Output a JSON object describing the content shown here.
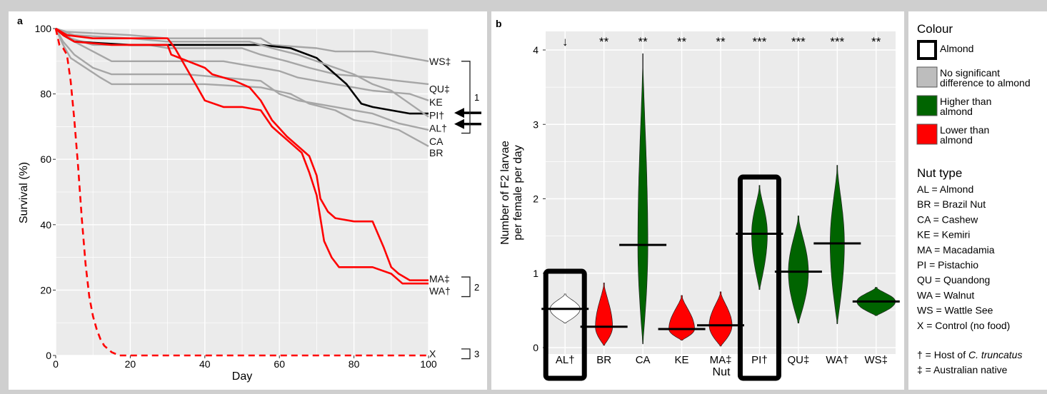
{
  "panels": {
    "a": "a",
    "b": "b"
  },
  "chart_data": [
    {
      "type": "line",
      "panel": "a",
      "xlabel": "Day",
      "ylabel": "Survival (%)",
      "xlim": [
        0,
        100
      ],
      "ylim": [
        0,
        100
      ],
      "x_ticks": [
        "0",
        "20",
        "40",
        "60",
        "80",
        "100"
      ],
      "y_ticks": [
        "0",
        "20",
        "40",
        "60",
        "80",
        "100"
      ],
      "grid": true,
      "series": [
        {
          "name": "WS‡",
          "color": "#a6a6a6",
          "points": [
            [
              0,
              100
            ],
            [
              3,
              99
            ],
            [
              20,
              98
            ],
            [
              30,
              97
            ],
            [
              55,
              97
            ],
            [
              58,
              95
            ],
            [
              70,
              94
            ],
            [
              75,
              93
            ],
            [
              85,
              93
            ],
            [
              90,
              92
            ],
            [
              100,
              90
            ]
          ]
        },
        {
          "name": "QU‡",
          "color": "#a6a6a6",
          "points": [
            [
              0,
              100
            ],
            [
              2,
              99
            ],
            [
              4,
              97
            ],
            [
              10,
              95
            ],
            [
              25,
              95
            ],
            [
              30,
              94
            ],
            [
              50,
              94
            ],
            [
              55,
              92
            ],
            [
              62,
              90
            ],
            [
              68,
              88
            ],
            [
              75,
              86
            ],
            [
              85,
              85
            ],
            [
              92,
              84
            ],
            [
              100,
              83
            ]
          ]
        },
        {
          "name": "KE",
          "color": "#a6a6a6",
          "points": [
            [
              0,
              100
            ],
            [
              2,
              98
            ],
            [
              5,
              96
            ],
            [
              10,
              93
            ],
            [
              15,
              90
            ],
            [
              30,
              90
            ],
            [
              45,
              90
            ],
            [
              50,
              89
            ],
            [
              60,
              87
            ],
            [
              65,
              85
            ],
            [
              75,
              83
            ],
            [
              85,
              81
            ],
            [
              95,
              80
            ],
            [
              100,
              78
            ]
          ]
        },
        {
          "name": "CA",
          "color": "#a6a6a6",
          "points": [
            [
              0,
              100
            ],
            [
              2,
              96
            ],
            [
              5,
              92
            ],
            [
              10,
              88
            ],
            [
              15,
              86
            ],
            [
              25,
              86
            ],
            [
              35,
              86
            ],
            [
              45,
              85
            ],
            [
              55,
              84
            ],
            [
              60,
              80
            ],
            [
              65,
              78
            ],
            [
              75,
              76
            ],
            [
              85,
              74
            ],
            [
              92,
              71
            ],
            [
              100,
              69
            ]
          ]
        },
        {
          "name": "BR",
          "color": "#a6a6a6",
          "points": [
            [
              0,
              100
            ],
            [
              2,
              95
            ],
            [
              4,
              91
            ],
            [
              8,
              88
            ],
            [
              12,
              85
            ],
            [
              15,
              83
            ],
            [
              28,
              83
            ],
            [
              40,
              83
            ],
            [
              55,
              82
            ],
            [
              63,
              80
            ],
            [
              68,
              77
            ],
            [
              75,
              75
            ],
            [
              80,
              72
            ],
            [
              85,
              71
            ],
            [
              92,
              69
            ],
            [
              100,
              64
            ]
          ]
        },
        {
          "name": "PI†",
          "color": "#000000",
          "points": [
            [
              0,
              100
            ],
            [
              2,
              98
            ],
            [
              5,
              96
            ],
            [
              20,
              95
            ],
            [
              35,
              95
            ],
            [
              55,
              95
            ],
            [
              63,
              94
            ],
            [
              70,
              91
            ],
            [
              73,
              88
            ],
            [
              76,
              85
            ],
            [
              78,
              83
            ],
            [
              80,
              80
            ],
            [
              82,
              77
            ],
            [
              85,
              76
            ],
            [
              90,
              75
            ],
            [
              95,
              74
            ],
            [
              100,
              74
            ]
          ]
        },
        {
          "name": "AL†",
          "color": "#a6a6a6",
          "points": [
            [
              0,
              100
            ],
            [
              2,
              99
            ],
            [
              5,
              98
            ],
            [
              20,
              97
            ],
            [
              30,
              96
            ],
            [
              40,
              96
            ],
            [
              52,
              96
            ],
            [
              58,
              94
            ],
            [
              65,
              92
            ],
            [
              70,
              90
            ],
            [
              75,
              88
            ],
            [
              80,
              86
            ],
            [
              85,
              83
            ],
            [
              90,
              81
            ],
            [
              95,
              77
            ],
            [
              100,
              73
            ]
          ]
        },
        {
          "name": "MA‡",
          "color": "#ff0000",
          "points": [
            [
              0,
              100
            ],
            [
              2,
              98
            ],
            [
              5,
              96
            ],
            [
              15,
              95
            ],
            [
              30,
              95
            ],
            [
              31,
              92
            ],
            [
              40,
              88
            ],
            [
              42,
              86
            ],
            [
              48,
              84
            ],
            [
              52,
              82
            ],
            [
              55,
              78
            ],
            [
              58,
              72
            ],
            [
              62,
              67
            ],
            [
              65,
              64
            ],
            [
              68,
              61
            ],
            [
              70,
              55
            ],
            [
              71,
              48
            ],
            [
              73,
              44
            ],
            [
              75,
              42
            ],
            [
              80,
              41
            ],
            [
              85,
              41
            ],
            [
              88,
              33
            ],
            [
              90,
              27
            ],
            [
              92,
              25
            ],
            [
              95,
              23
            ],
            [
              100,
              23
            ]
          ]
        },
        {
          "name": "WA†",
          "color": "#ff0000",
          "points": [
            [
              0,
              100
            ],
            [
              3,
              98
            ],
            [
              10,
              97
            ],
            [
              20,
              97
            ],
            [
              30,
              97
            ],
            [
              32,
              94
            ],
            [
              35,
              88
            ],
            [
              38,
              82
            ],
            [
              40,
              78
            ],
            [
              45,
              76
            ],
            [
              50,
              76
            ],
            [
              55,
              75
            ],
            [
              58,
              70
            ],
            [
              60,
              68
            ],
            [
              63,
              65
            ],
            [
              66,
              62
            ],
            [
              68,
              56
            ],
            [
              70,
              49
            ],
            [
              72,
              35
            ],
            [
              74,
              30
            ],
            [
              76,
              27
            ],
            [
              85,
              27
            ],
            [
              90,
              25
            ],
            [
              93,
              22
            ],
            [
              100,
              22
            ]
          ]
        },
        {
          "name": "X",
          "color": "#ff0000",
          "dashed": true,
          "points": [
            [
              0,
              100
            ],
            [
              1,
              95
            ],
            [
              2,
              94
            ],
            [
              3,
              92
            ],
            [
              4,
              84
            ],
            [
              5,
              72
            ],
            [
              6,
              58
            ],
            [
              7,
              42
            ],
            [
              8,
              28
            ],
            [
              9,
              18
            ],
            [
              10,
              12
            ],
            [
              11,
              8
            ],
            [
              12,
              5
            ],
            [
              13,
              3
            ],
            [
              14,
              2
            ],
            [
              15,
              1
            ],
            [
              17,
              0
            ],
            [
              100,
              0
            ]
          ]
        }
      ],
      "brackets": [
        {
          "label": "1",
          "from": 90,
          "to": 68
        },
        {
          "label": "2",
          "from": 24,
          "to": 18
        },
        {
          "label": "3",
          "from": 2,
          "to": -1
        }
      ],
      "arrows": [
        "PI†",
        "AL†"
      ]
    },
    {
      "type": "violin",
      "panel": "b",
      "xlabel": "Nut",
      "ylabel_line1": "Number of F2 larvae",
      "ylabel_line2": "per female per day",
      "ylim": [
        0,
        4
      ],
      "y_ticks": [
        "0",
        "1",
        "2",
        "3",
        "4"
      ],
      "grid": true,
      "categories": [
        {
          "label": "AL†",
          "mean": 0.52,
          "range": [
            0.33,
            0.72
          ],
          "color": "#ffffff",
          "significance": "↓",
          "boxed": true
        },
        {
          "label": "BR",
          "mean": 0.28,
          "range": [
            0.03,
            0.87
          ],
          "color": "#ff0000",
          "significance": "**"
        },
        {
          "label": "CA",
          "mean": 1.38,
          "range": [
            0.05,
            3.95
          ],
          "color": "#006400",
          "significance": "**"
        },
        {
          "label": "KE",
          "mean": 0.25,
          "range": [
            0.1,
            0.7
          ],
          "color": "#ff0000",
          "significance": "**"
        },
        {
          "label": "MA‡",
          "mean": 0.3,
          "range": [
            0.02,
            0.75
          ],
          "color": "#ff0000",
          "significance": "**"
        },
        {
          "label": "PI†",
          "mean": 1.53,
          "range": [
            0.78,
            2.18
          ],
          "color": "#006400",
          "significance": "***",
          "boxed": true
        },
        {
          "label": "QU‡",
          "mean": 1.02,
          "range": [
            0.33,
            1.77
          ],
          "color": "#006400",
          "significance": "***"
        },
        {
          "label": "WA†",
          "mean": 1.4,
          "range": [
            0.32,
            2.45
          ],
          "color": "#006400",
          "significance": "***"
        },
        {
          "label": "WS‡",
          "mean": 0.62,
          "range": [
            0.43,
            0.81
          ],
          "color": "#006400",
          "significance": "**"
        }
      ]
    }
  ],
  "legend": {
    "colour_title": "Colour",
    "colour_items": [
      {
        "lines": [
          "Almond"
        ],
        "fill": "#ffffff",
        "thick_border": true
      },
      {
        "lines": [
          "No significant",
          "difference to almond"
        ],
        "fill": "#bdbdbd"
      },
      {
        "lines": [
          "Higher than",
          "almond"
        ],
        "fill": "#006400"
      },
      {
        "lines": [
          "Lower than",
          "almond"
        ],
        "fill": "#ff0000"
      }
    ],
    "nut_title": "Nut type",
    "nut_items": [
      "AL = Almond",
      "BR = Brazil Nut",
      "CA = Cashew",
      "KE = Kemiri",
      "MA = Macadamia",
      "PI = Pistachio",
      "QU = Quandong",
      "WA = Walnut",
      "WS = Wattle See",
      "X = Control (no food)"
    ],
    "notes": [
      {
        "prefix": "† = Host of ",
        "italic": "C. truncatus"
      },
      {
        "prefix": "‡ = Australian native",
        "italic": ""
      }
    ]
  }
}
